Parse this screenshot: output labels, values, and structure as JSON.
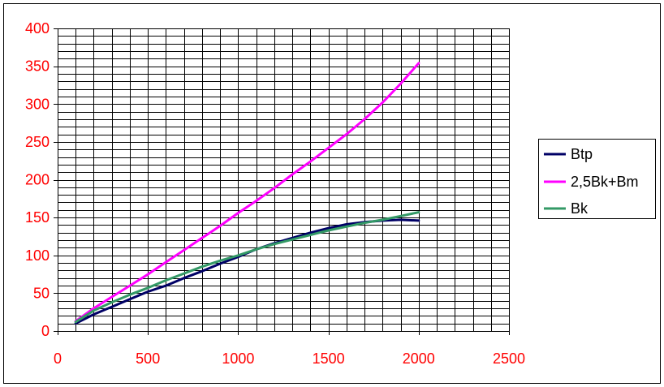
{
  "chart_data": {
    "type": "line",
    "title": "",
    "xlabel": "",
    "ylabel": "",
    "xlim": [
      0,
      2500
    ],
    "ylim": [
      0,
      400
    ],
    "x_ticks": [
      0,
      500,
      1000,
      1500,
      2000,
      2500
    ],
    "y_ticks": [
      0,
      50,
      100,
      150,
      200,
      250,
      300,
      350,
      400
    ],
    "x_tick_labels": [
      "0",
      "500",
      "1000",
      "1500",
      "2000",
      "2500"
    ],
    "y_tick_labels": [
      "0",
      "50",
      "100",
      "150",
      "200",
      "250",
      "300",
      "350",
      "400"
    ],
    "grid": true,
    "legend_position": "right",
    "tick_label_color": "#ff0000",
    "series": [
      {
        "name": "Btp",
        "color": "#000066",
        "x": [
          100,
          200,
          300,
          400,
          500,
          600,
          700,
          800,
          900,
          1000,
          1100,
          1200,
          1300,
          1400,
          1500,
          1600,
          1700,
          1800,
          1900,
          2000
        ],
        "y": [
          10,
          22,
          32,
          42,
          52,
          60,
          70,
          79,
          89,
          98,
          108,
          116,
          123,
          130,
          136,
          141,
          144,
          146,
          147,
          146
        ]
      },
      {
        "name": "2,5Bk+Bm",
        "color": "#ff00ff",
        "x": [
          100,
          200,
          300,
          400,
          500,
          600,
          700,
          800,
          900,
          1000,
          1100,
          1200,
          1300,
          1400,
          1500,
          1600,
          1700,
          1800,
          1900,
          2000
        ],
        "y": [
          13,
          30,
          45,
          60,
          75,
          91,
          107,
          123,
          139,
          156,
          172,
          189,
          207,
          224,
          242,
          260,
          280,
          302,
          327,
          354
        ]
      },
      {
        "name": "Bk",
        "color": "#339966",
        "x": [
          100,
          200,
          300,
          400,
          500,
          600,
          700,
          800,
          900,
          1000,
          1100,
          1200,
          1300,
          1400,
          1500,
          1600,
          1700,
          1800,
          1900,
          2000
        ],
        "y": [
          12,
          27,
          38,
          48,
          57,
          67,
          76,
          85,
          93,
          100,
          108,
          115,
          121,
          127,
          133,
          138,
          143,
          147,
          152,
          157
        ]
      }
    ]
  }
}
